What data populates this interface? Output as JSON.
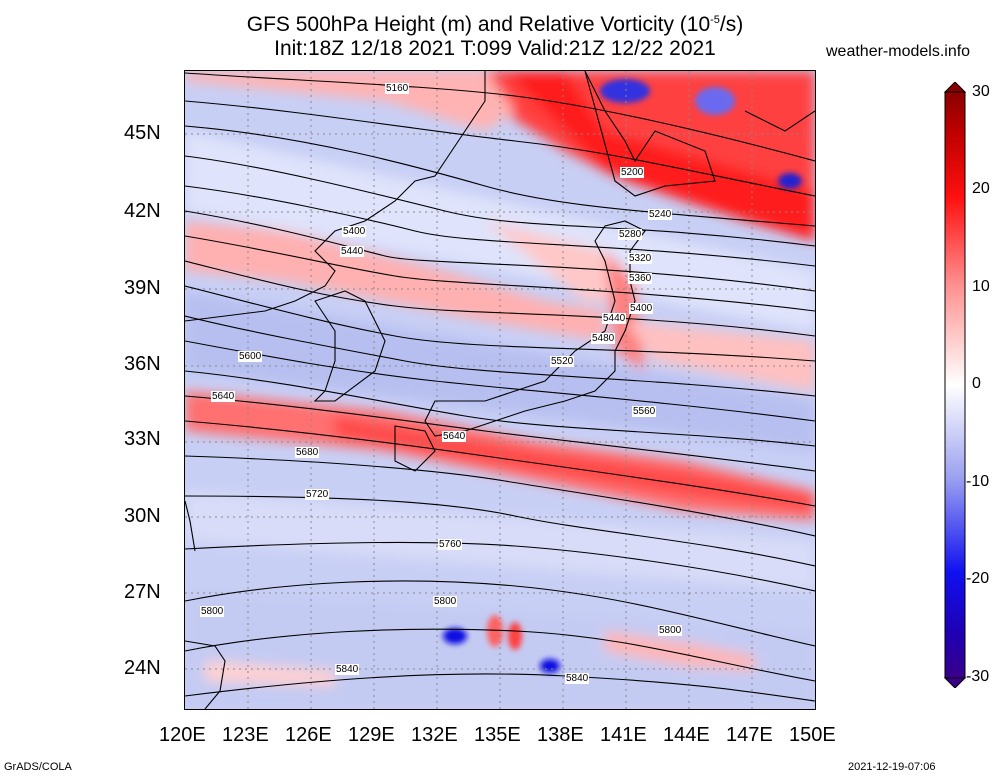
{
  "header": {
    "title_line1": "GFS 500hPa Height (m) and Relative Vorticity (10",
    "title_exp": "-5",
    "title_line1_end": "/s)",
    "title_line2": "Init:18Z 12/18 2021 T:099 Valid:21Z 12/22 2021",
    "site": "weather-models.info"
  },
  "footer": {
    "left": "GrADS/COLA",
    "right": "2021-12-19-07:06"
  },
  "map": {
    "lat_labels": [
      "45N",
      "42N",
      "39N",
      "36N",
      "33N",
      "30N",
      "27N",
      "24N"
    ],
    "lon_labels": [
      "120E",
      "123E",
      "126E",
      "129E",
      "132E",
      "135E",
      "138E",
      "141E",
      "144E",
      "147E",
      "150E"
    ],
    "contour_labels": [
      "5160",
      "5200",
      "5240",
      "5280",
      "5320",
      "5360",
      "5400",
      "5400",
      "5440",
      "5440",
      "5480",
      "5520",
      "5560",
      "5600",
      "5640",
      "5640",
      "5680",
      "5720",
      "5760",
      "5800",
      "5800",
      "5800",
      "5840",
      "5840"
    ]
  },
  "colorbar": {
    "labels": [
      "30",
      "20",
      "10",
      "0",
      "-10",
      "-20",
      "-30"
    ],
    "colors": {
      "max": "#b00000",
      "high": "#ff1010",
      "mid_high": "#ff9a9a",
      "zero": "#ffffff",
      "mid_low": "#9fa6f0",
      "low": "#1010f0",
      "min": "#3a008a"
    }
  }
}
